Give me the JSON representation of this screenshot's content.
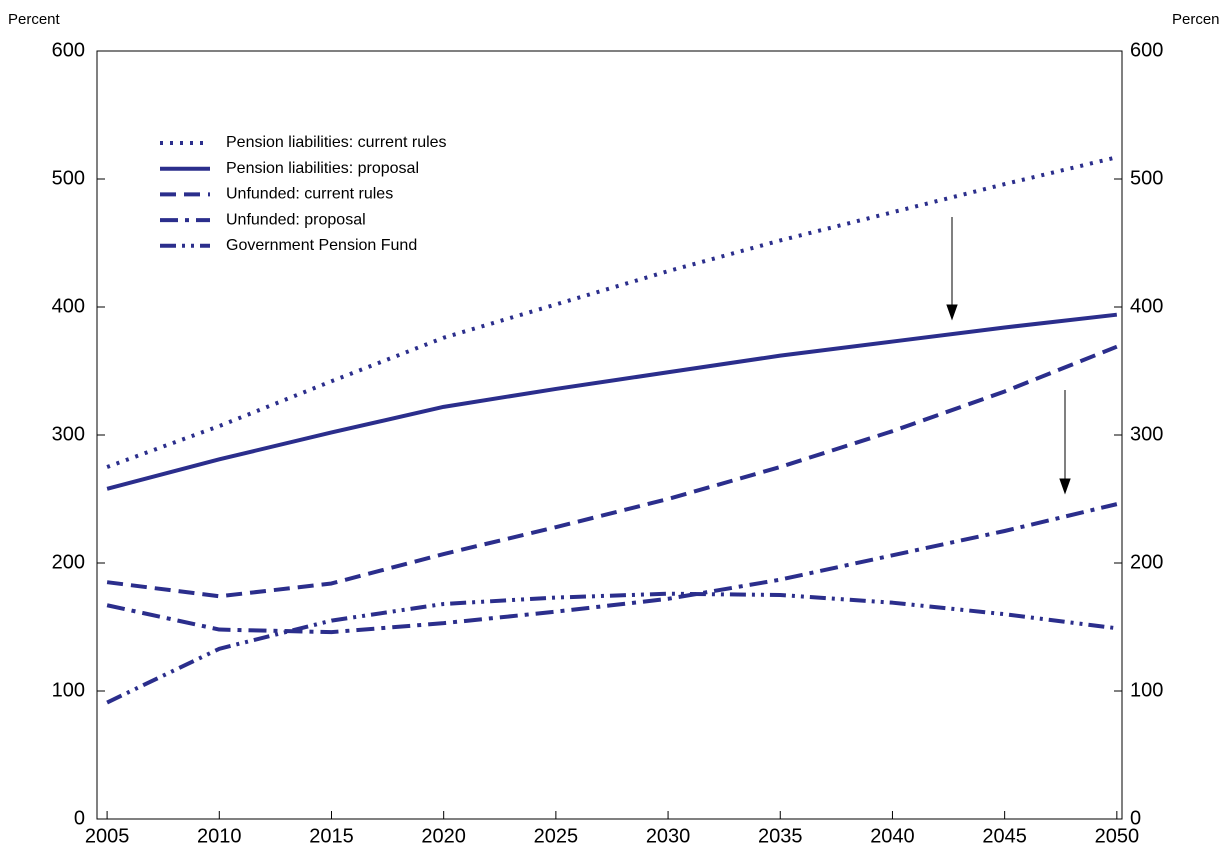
{
  "chart_data": {
    "type": "line",
    "y_label": "Percent",
    "y2_label": "Percent",
    "x": [
      2005,
      2010,
      2015,
      2020,
      2025,
      2030,
      2035,
      2040,
      2045,
      2050
    ],
    "series": [
      {
        "name": "Pension liabilities:  current rules",
        "color": "#2b2e8c",
        "style": "dotted",
        "values": [
          275,
          307,
          342,
          376,
          402,
          428,
          452,
          474,
          496,
          517
        ]
      },
      {
        "name": "Pension liabilities:  proposal",
        "color": "#2b2e8c",
        "style": "solid",
        "values": [
          258,
          281,
          302,
          322,
          336,
          349,
          362,
          373,
          384,
          394
        ]
      },
      {
        "name": "Unfunded:  current rules",
        "color": "#2b2e8c",
        "style": "dashed",
        "values": [
          185,
          174,
          184,
          207,
          228,
          250,
          275,
          303,
          334,
          369
        ]
      },
      {
        "name": "Unfunded:  proposal",
        "color": "#2b2e8c",
        "style": "dashdot",
        "values": [
          167,
          148,
          146,
          153,
          162,
          172,
          187,
          206,
          225,
          246
        ]
      },
      {
        "name": "Government Pension Fund",
        "color": "#2b2e8c",
        "style": "dashdotdot",
        "values": [
          91,
          133,
          155,
          168,
          173,
          176,
          175,
          169,
          160,
          149
        ]
      }
    ],
    "xlim": [
      2004.55,
      2050.23
    ],
    "xticks": [
      2005,
      2010,
      2015,
      2020,
      2025,
      2030,
      2035,
      2040,
      2045,
      2050
    ],
    "ylim": [
      0,
      600
    ],
    "yticks": [
      0,
      100,
      200,
      300,
      400,
      500,
      600
    ],
    "y2lim": [
      0,
      600
    ],
    "y2ticks": [
      0,
      100,
      200,
      300,
      400,
      500,
      600
    ],
    "grid": false
  }
}
